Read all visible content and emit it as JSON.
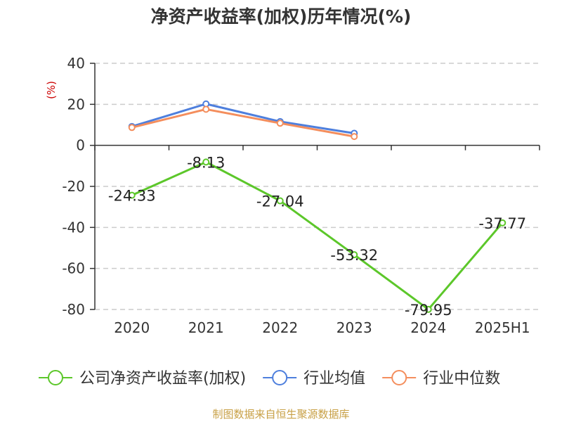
{
  "title": "净资产收益率(加权)历年情况(%)",
  "source": "制图数据来自恒生聚源数据库",
  "chart_data": {
    "type": "line",
    "title": "净资产收益率(加权)历年情况(%)",
    "ylabel": "(%)",
    "ylim": [
      -80,
      40
    ],
    "yticks": [
      40,
      20,
      0,
      -20,
      -40,
      -60,
      -80
    ],
    "grid": true,
    "legend": "bottom",
    "categories": [
      "2020",
      "2021",
      "2022",
      "2023",
      "2024",
      "2025H1"
    ],
    "series": [
      {
        "name": "公司净资产收益率(加权)",
        "color": "#5cc72a",
        "values": [
          -24.33,
          -8.13,
          -27.04,
          -53.32,
          -79.95,
          -37.77
        ],
        "labels": [
          "-24.33",
          "-8.13",
          "-27.04",
          "-53.32",
          "-79.95",
          "-37.77"
        ]
      },
      {
        "name": "行业均值",
        "color": "#4e7fdd",
        "values": [
          9.2,
          20.2,
          11.6,
          5.9,
          null,
          null
        ]
      },
      {
        "name": "行业中位数",
        "color": "#f48e5d",
        "values": [
          8.7,
          17.6,
          10.8,
          4.3,
          null,
          null
        ]
      }
    ]
  }
}
